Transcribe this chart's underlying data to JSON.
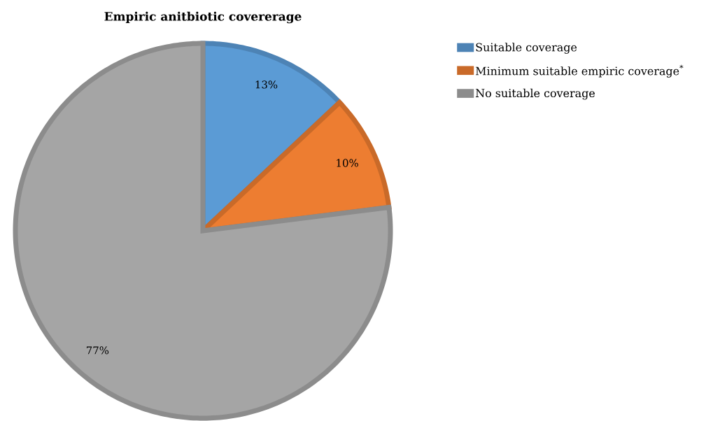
{
  "chart_data": {
    "type": "pie",
    "title": "Empiric anitbiotic covererage",
    "categories": [
      "Suitable coverage",
      "Minimum suitable empiric coverage$^{*}$",
      "No suitable coverage"
    ],
    "values": [
      13,
      10,
      77
    ],
    "colors": [
      "#5b9bd5",
      "#ed7d31",
      "#a5a5a5"
    ],
    "value_labels": [
      "13%",
      "10%",
      "77%"
    ],
    "legend": "top right"
  }
}
